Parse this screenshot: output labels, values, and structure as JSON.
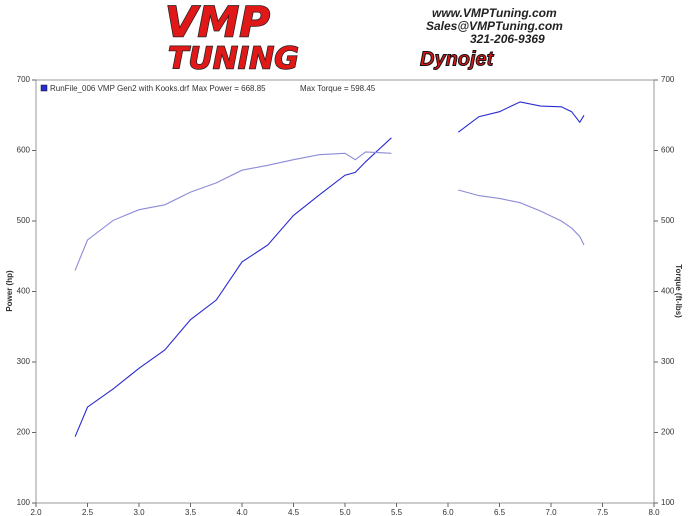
{
  "chart_data": {
    "type": "line",
    "header": {
      "logo": "VMP",
      "logo_sub": "TUNING",
      "website": "www.VMPTuning.com",
      "email": "Sales@VMPTuning.com",
      "phone": "321-206-9369",
      "brand": "Dynojet"
    },
    "legend": {
      "run": "RunFile_006 VMP Gen2 with Kooks.drf",
      "max_power": "Max Power = 668.85",
      "max_torque": "Max Torque = 598.45"
    },
    "ylabel": "Power (hp)",
    "y2label": "Torque (ft-lbs)",
    "x": [
      2.38,
      2.5,
      2.75,
      3.0,
      3.25,
      3.5,
      3.75,
      4.0,
      4.25,
      4.5,
      4.75,
      5.0,
      5.1,
      5.2,
      5.45,
      5.8,
      6.1,
      6.3,
      6.5,
      6.7,
      6.9,
      7.1,
      7.2,
      7.28,
      7.32
    ],
    "series": [
      {
        "color": "#2a2ad0",
        "values": [
          194,
          236,
          262,
          291,
          317,
          360,
          388,
          442,
          466,
          508,
          537,
          565,
          569,
          584,
          618,
          null,
          626,
          648,
          655,
          669,
          663,
          662,
          655,
          640,
          650
        ]
      },
      {
        "color": "#8c8cd8",
        "axis": "y2",
        "values": [
          430,
          473,
          501,
          516,
          523,
          541,
          554,
          572,
          579,
          587,
          594,
          596,
          587,
          598,
          596,
          null,
          544,
          536,
          532,
          526,
          514,
          500,
          490,
          478,
          466
        ]
      }
    ],
    "xlim": [
      2.0,
      8.0
    ],
    "xticks": [
      {
        "value": 2,
        "label": "2.0"
      },
      2.5,
      {
        "value": 3,
        "label": "3.0"
      },
      3.5,
      {
        "value": 4,
        "label": "4.0"
      },
      4.5,
      {
        "value": 5,
        "label": "5.0"
      },
      5.5,
      {
        "value": 6,
        "label": "6.0"
      },
      6.5,
      {
        "value": 7,
        "label": "7.0"
      },
      7.5,
      {
        "value": 8,
        "label": "8.0"
      }
    ],
    "ylim": [
      100,
      700
    ],
    "yticks": [
      100,
      200,
      300,
      400,
      500,
      600,
      700
    ],
    "y2lim": [
      100,
      700
    ],
    "y2ticks": [
      100,
      200,
      300,
      400,
      500,
      600,
      700
    ],
    "grid": false
  }
}
